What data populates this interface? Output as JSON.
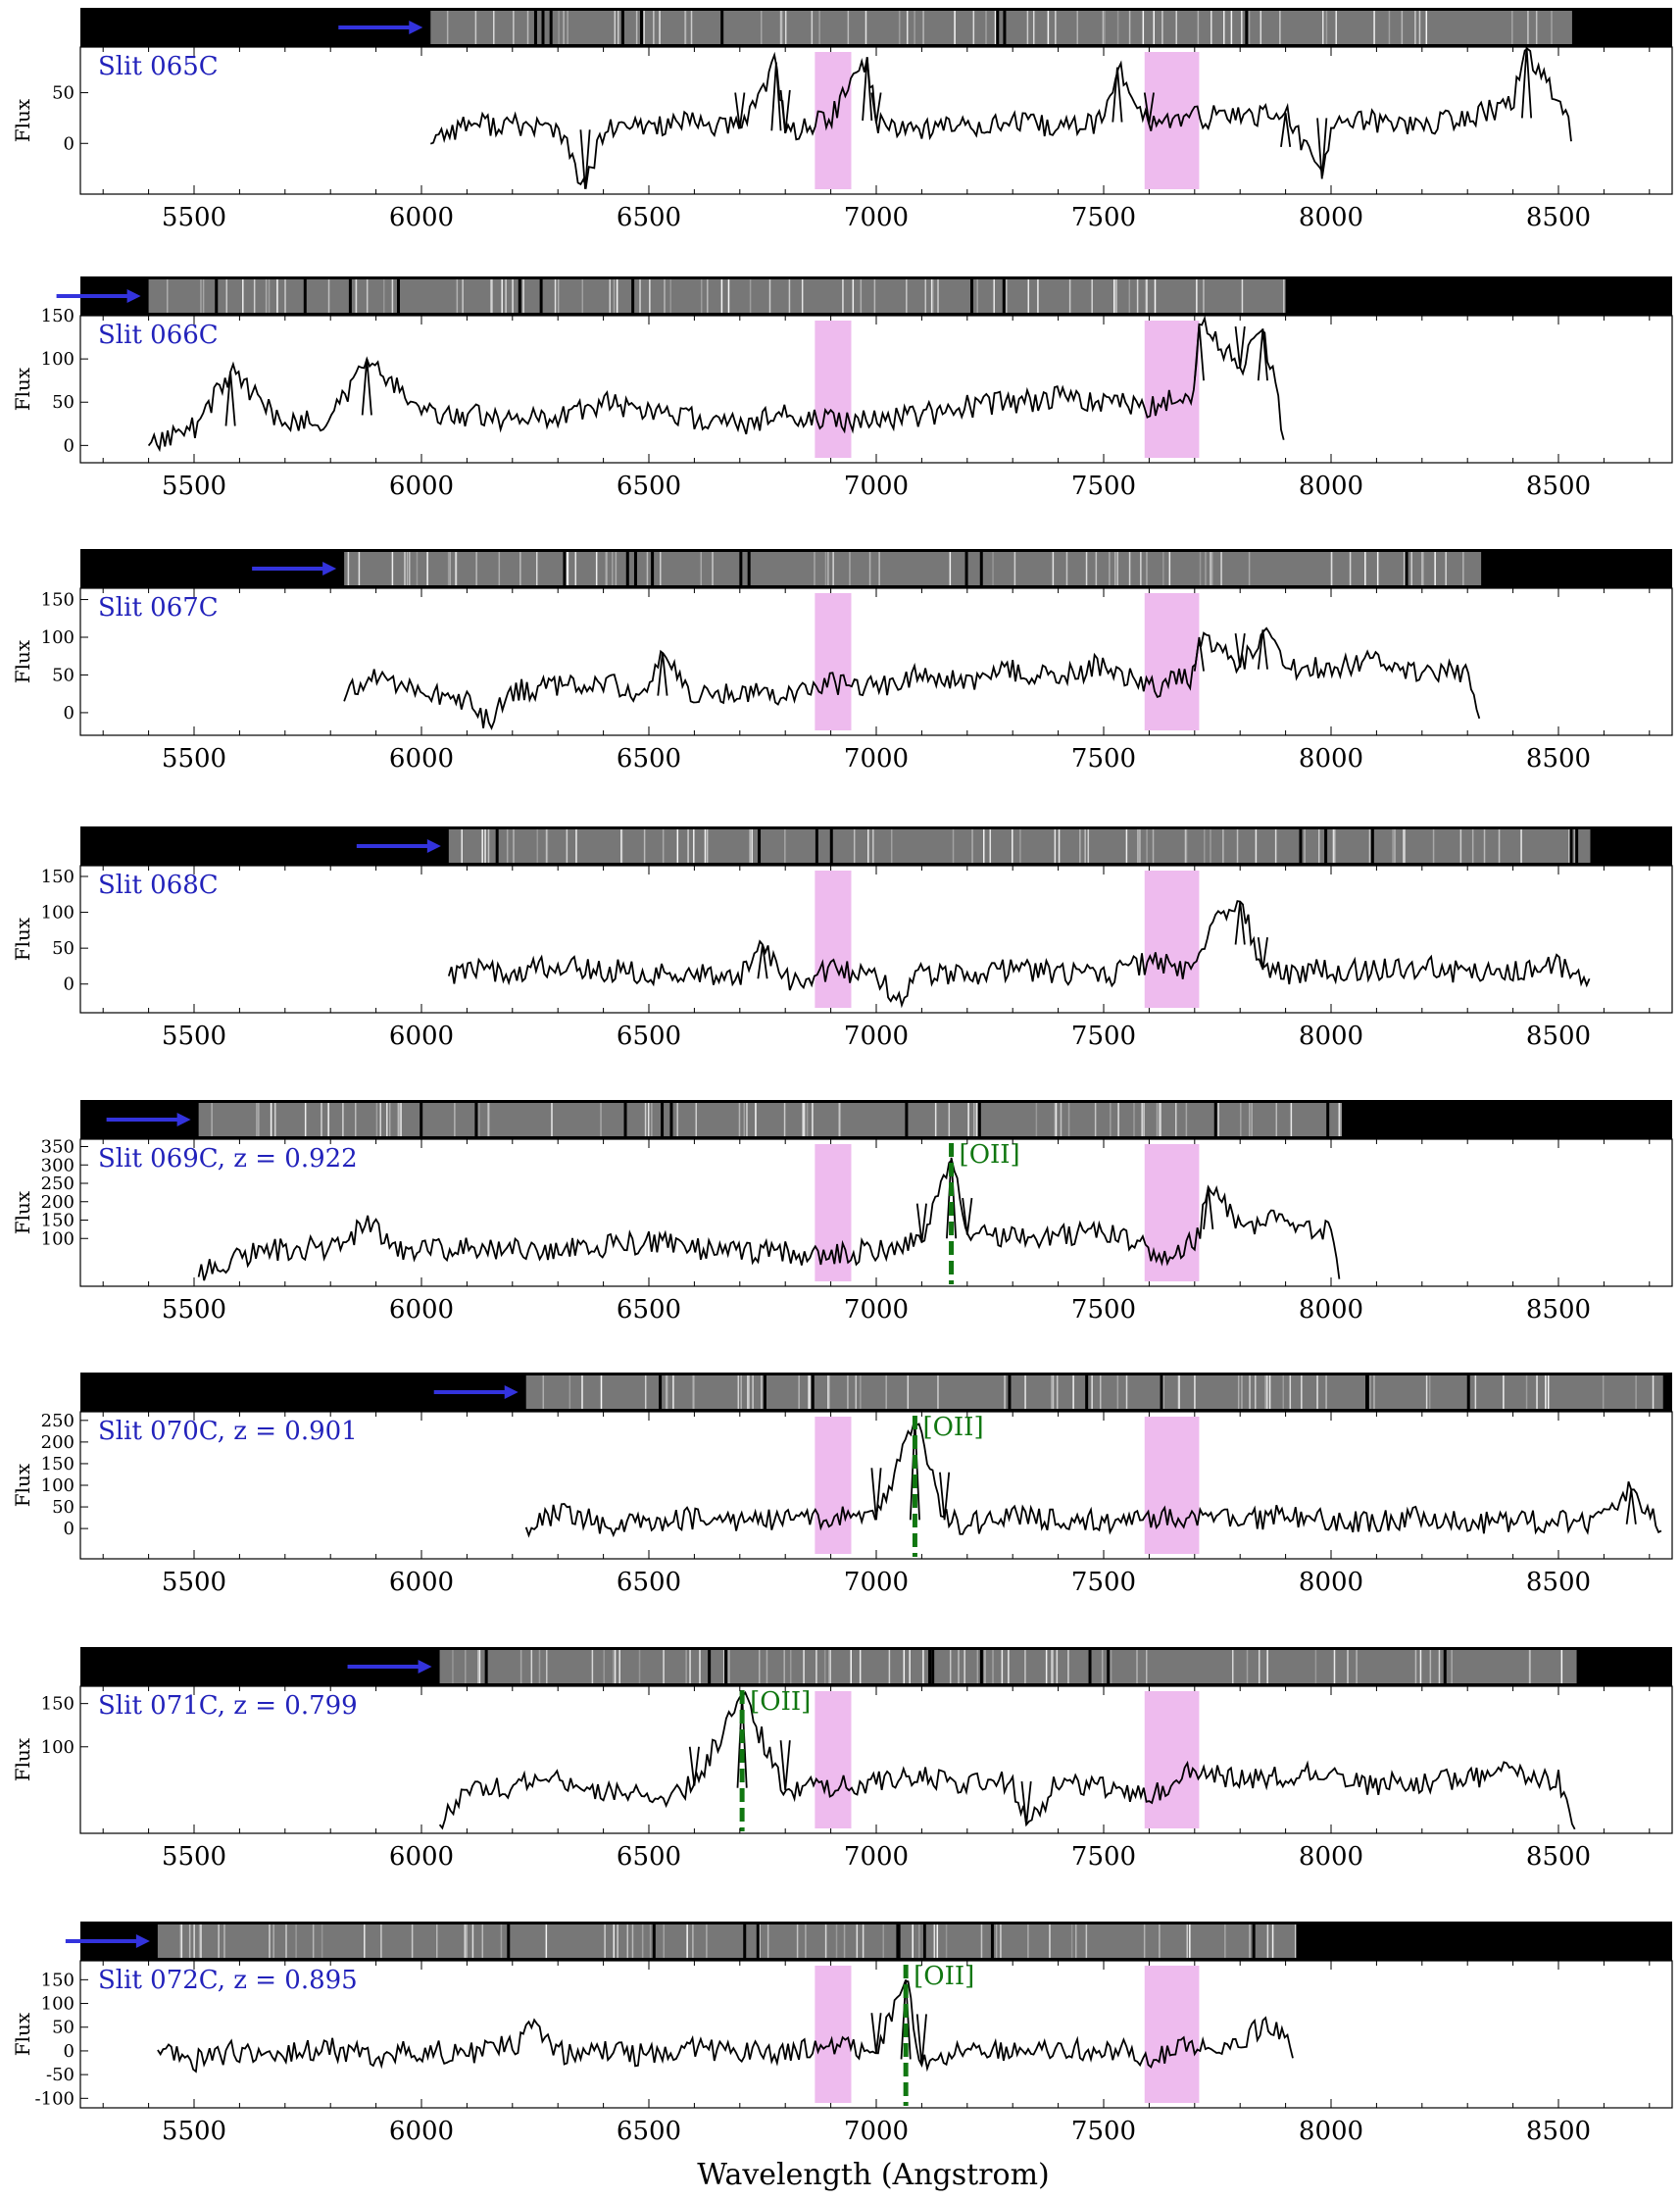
{
  "figure": {
    "xlabel": "Wavelength (Angstrom)",
    "colors": {
      "spectrum": "#000000",
      "telluric_band": "#eebbee",
      "label_text": "#2222bb",
      "arrow": "#3333dd",
      "line_marker": "#117711",
      "strip_background": "#000000"
    }
  },
  "chart_data": [
    {
      "type": "line",
      "label": "Slit 065C",
      "ylabel": "Flux",
      "xlim": [
        5250,
        8750
      ],
      "xticks": [
        5500,
        6000,
        6500,
        7000,
        7500,
        8000,
        8500
      ],
      "ylim": [
        -50,
        95
      ],
      "yticks": [
        0,
        50
      ],
      "spectrum_range": [
        6020,
        8530
      ],
      "telluric_bands": [
        [
          6865,
          6945
        ],
        [
          7590,
          7710
        ]
      ],
      "emission_lines": [],
      "series": [
        {
          "x": [
            6020,
            6100,
            6200,
            6300,
            6360,
            6400,
            6500,
            6600,
            6700,
            6780,
            6800,
            6900,
            6980,
            7000,
            7100,
            7200,
            7300,
            7400,
            7500,
            7530,
            7600,
            7700,
            7800,
            7900,
            7980,
            8000,
            8100,
            8200,
            8300,
            8400,
            8430,
            8530
          ],
          "y": [
            5,
            20,
            18,
            15,
            -45,
            12,
            18,
            20,
            15,
            80,
            10,
            25,
            85,
            20,
            15,
            18,
            20,
            15,
            22,
            75,
            20,
            25,
            28,
            30,
            -35,
            20,
            22,
            18,
            25,
            40,
            95,
            10
          ]
        }
      ]
    },
    {
      "type": "line",
      "label": "Slit 066C",
      "ylabel": "Flux",
      "xlim": [
        5250,
        8750
      ],
      "xticks": [
        5500,
        6000,
        6500,
        7000,
        7500,
        8000,
        8500
      ],
      "ylim": [
        -20,
        150
      ],
      "yticks": [
        0,
        50,
        100,
        150
      ],
      "spectrum_range": [
        5400,
        7900
      ],
      "telluric_bands": [
        [
          6865,
          6945
        ],
        [
          7590,
          7710
        ]
      ],
      "emission_lines": [],
      "series": [
        {
          "x": [
            5400,
            5500,
            5580,
            5700,
            5800,
            5880,
            6000,
            6100,
            6200,
            6300,
            6400,
            6500,
            6600,
            6700,
            6800,
            6900,
            7000,
            7100,
            7200,
            7300,
            7400,
            7500,
            7600,
            7700,
            7710,
            7800,
            7850,
            7880,
            7900
          ],
          "y": [
            5,
            20,
            85,
            25,
            30,
            100,
            40,
            35,
            30,
            35,
            50,
            40,
            30,
            25,
            35,
            30,
            30,
            35,
            45,
            50,
            55,
            50,
            45,
            60,
            140,
            90,
            135,
            60,
            0
          ]
        }
      ]
    },
    {
      "type": "line",
      "label": "Slit 067C",
      "ylabel": "Flux",
      "xlim": [
        5250,
        8750
      ],
      "xticks": [
        5500,
        6000,
        6500,
        7000,
        7500,
        8000,
        8500
      ],
      "ylim": [
        -30,
        165
      ],
      "yticks": [
        0,
        50,
        100,
        150
      ],
      "spectrum_range": [
        5830,
        8330
      ],
      "telluric_bands": [
        [
          6865,
          6945
        ],
        [
          7590,
          7710
        ]
      ],
      "emission_lines": [],
      "series": [
        {
          "x": [
            5830,
            5900,
            6000,
            6100,
            6150,
            6200,
            6300,
            6400,
            6500,
            6530,
            6600,
            6700,
            6800,
            6900,
            7000,
            7100,
            7200,
            7300,
            7400,
            7500,
            7600,
            7700,
            7710,
            7800,
            7850,
            7900,
            8000,
            8100,
            8200,
            8300,
            8330
          ],
          "y": [
            20,
            50,
            30,
            15,
            -15,
            30,
            35,
            40,
            25,
            80,
            20,
            30,
            25,
            40,
            35,
            50,
            40,
            55,
            45,
            65,
            30,
            50,
            100,
            60,
            110,
            55,
            60,
            70,
            50,
            55,
            0
          ]
        }
      ]
    },
    {
      "type": "line",
      "label": "Slit 068C",
      "ylabel": "Flux",
      "xlim": [
        5250,
        8750
      ],
      "xticks": [
        5500,
        6000,
        6500,
        7000,
        7500,
        8000,
        8500
      ],
      "ylim": [
        -40,
        165
      ],
      "yticks": [
        0,
        50,
        100,
        150
      ],
      "spectrum_range": [
        6060,
        8570
      ],
      "telluric_bands": [
        [
          6865,
          6945
        ],
        [
          7590,
          7710
        ]
      ],
      "emission_lines": [],
      "series": [
        {
          "x": [
            6060,
            6100,
            6200,
            6300,
            6400,
            6500,
            6600,
            6700,
            6750,
            6800,
            6900,
            7000,
            7050,
            7100,
            7200,
            7300,
            7400,
            7500,
            7600,
            7700,
            7750,
            7800,
            7850,
            7900,
            8000,
            8100,
            8200,
            8300,
            8400,
            8500,
            8570
          ],
          "y": [
            15,
            20,
            15,
            25,
            20,
            15,
            15,
            10,
            55,
            5,
            20,
            10,
            -25,
            15,
            10,
            20,
            15,
            10,
            30,
            20,
            90,
            115,
            20,
            15,
            20,
            20,
            25,
            15,
            20,
            25,
            0
          ]
        }
      ]
    },
    {
      "type": "line",
      "label": "Slit 069C, z = 0.922",
      "ylabel": "Flux",
      "xlim": [
        5250,
        8750
      ],
      "xticks": [
        5500,
        6000,
        6500,
        7000,
        7500,
        8000,
        8500
      ],
      "ylim": [
        -30,
        370
      ],
      "yticks": [
        100,
        150,
        200,
        250,
        300,
        350
      ],
      "spectrum_range": [
        5510,
        8020
      ],
      "telluric_bands": [
        [
          6865,
          6945
        ],
        [
          7590,
          7710
        ]
      ],
      "emission_lines": [
        {
          "label": "[OII]",
          "wavelength": 7165
        }
      ],
      "series": [
        {
          "x": [
            5510,
            5600,
            5700,
            5800,
            5890,
            5950,
            6000,
            6100,
            6200,
            6300,
            6400,
            6500,
            6600,
            6700,
            6800,
            6900,
            7000,
            7100,
            7165,
            7200,
            7300,
            7400,
            7500,
            7600,
            7650,
            7710,
            7730,
            7800,
            7900,
            8000,
            8020
          ],
          "y": [
            0,
            55,
            70,
            75,
            140,
            60,
            65,
            70,
            75,
            70,
            80,
            90,
            70,
            65,
            60,
            50,
            70,
            90,
            320,
            110,
            100,
            110,
            120,
            70,
            40,
            110,
            240,
            140,
            150,
            120,
            0
          ]
        }
      ]
    },
    {
      "type": "line",
      "label": "Slit 070C, z = 0.901",
      "ylabel": "Flux",
      "xlim": [
        5250,
        8750
      ],
      "xticks": [
        5500,
        6000,
        6500,
        7000,
        7500,
        8000,
        8500
      ],
      "ylim": [
        -70,
        270
      ],
      "yticks": [
        0,
        50,
        100,
        150,
        200,
        250
      ],
      "spectrum_range": [
        6230,
        8730
      ],
      "telluric_bands": [
        [
          6865,
          6945
        ],
        [
          7590,
          7710
        ]
      ],
      "emission_lines": [
        {
          "label": "[OII]",
          "wavelength": 7085
        }
      ],
      "series": [
        {
          "x": [
            6230,
            6300,
            6400,
            6500,
            6600,
            6700,
            6800,
            6900,
            7000,
            7085,
            7150,
            7200,
            7300,
            7400,
            7500,
            7600,
            7700,
            7800,
            7900,
            8000,
            8100,
            8200,
            8300,
            8400,
            8500,
            8600,
            8660,
            8730
          ],
          "y": [
            5,
            40,
            10,
            15,
            25,
            20,
            15,
            30,
            20,
            250,
            20,
            10,
            30,
            20,
            15,
            20,
            25,
            15,
            30,
            20,
            15,
            25,
            10,
            20,
            15,
            20,
            90,
            0
          ]
        }
      ]
    },
    {
      "type": "line",
      "label": "Slit 071C, z = 0.799",
      "ylabel": "Flux",
      "xlim": [
        5250,
        8750
      ],
      "xticks": [
        5500,
        6000,
        6500,
        7000,
        7500,
        8000,
        8500
      ],
      "ylim": [
        0,
        170
      ],
      "yticks": [
        100,
        150
      ],
      "spectrum_range": [
        6040,
        8540
      ],
      "telluric_bands": [
        [
          6865,
          6945
        ],
        [
          7590,
          7710
        ]
      ],
      "emission_lines": [
        {
          "label": "[OII]",
          "wavelength": 6705
        }
      ],
      "series": [
        {
          "x": [
            6040,
            6100,
            6200,
            6300,
            6400,
            6500,
            6600,
            6705,
            6800,
            6900,
            7000,
            7100,
            7200,
            7300,
            7330,
            7400,
            7500,
            7600,
            7700,
            7800,
            7900,
            8000,
            8100,
            8200,
            8300,
            8400,
            8500,
            8540
          ],
          "y": [
            10,
            45,
            55,
            60,
            50,
            40,
            55,
            160,
            50,
            55,
            60,
            65,
            55,
            60,
            10,
            60,
            55,
            40,
            75,
            60,
            65,
            70,
            55,
            60,
            65,
            70,
            60,
            10
          ]
        }
      ]
    },
    {
      "type": "line",
      "label": "Slit 072C, z = 0.895",
      "ylabel": "Flux",
      "xlim": [
        5250,
        8750
      ],
      "xticks": [
        5500,
        6000,
        6500,
        7000,
        7500,
        8000,
        8500
      ],
      "ylim": [
        -120,
        190
      ],
      "yticks": [
        -100,
        -50,
        0,
        50,
        100,
        150
      ],
      "spectrum_range": [
        5420,
        7920
      ],
      "telluric_bands": [
        [
          6865,
          6945
        ],
        [
          7590,
          7710
        ]
      ],
      "emission_lines": [
        {
          "label": "[OII]",
          "wavelength": 7065
        }
      ],
      "series": [
        {
          "x": [
            5420,
            5500,
            5600,
            5700,
            5800,
            5900,
            6000,
            6100,
            6200,
            6250,
            6300,
            6400,
            6500,
            6600,
            6700,
            6800,
            6900,
            7000,
            7065,
            7100,
            7200,
            7300,
            7400,
            7500,
            7600,
            7700,
            7800,
            7850,
            7920
          ],
          "y": [
            0,
            -20,
            0,
            -5,
            5,
            -10,
            0,
            -5,
            10,
            50,
            -5,
            0,
            -10,
            5,
            0,
            -5,
            10,
            -5,
            150,
            -30,
            5,
            0,
            -5,
            10,
            -15,
            10,
            5,
            60,
            5
          ]
        }
      ]
    }
  ]
}
